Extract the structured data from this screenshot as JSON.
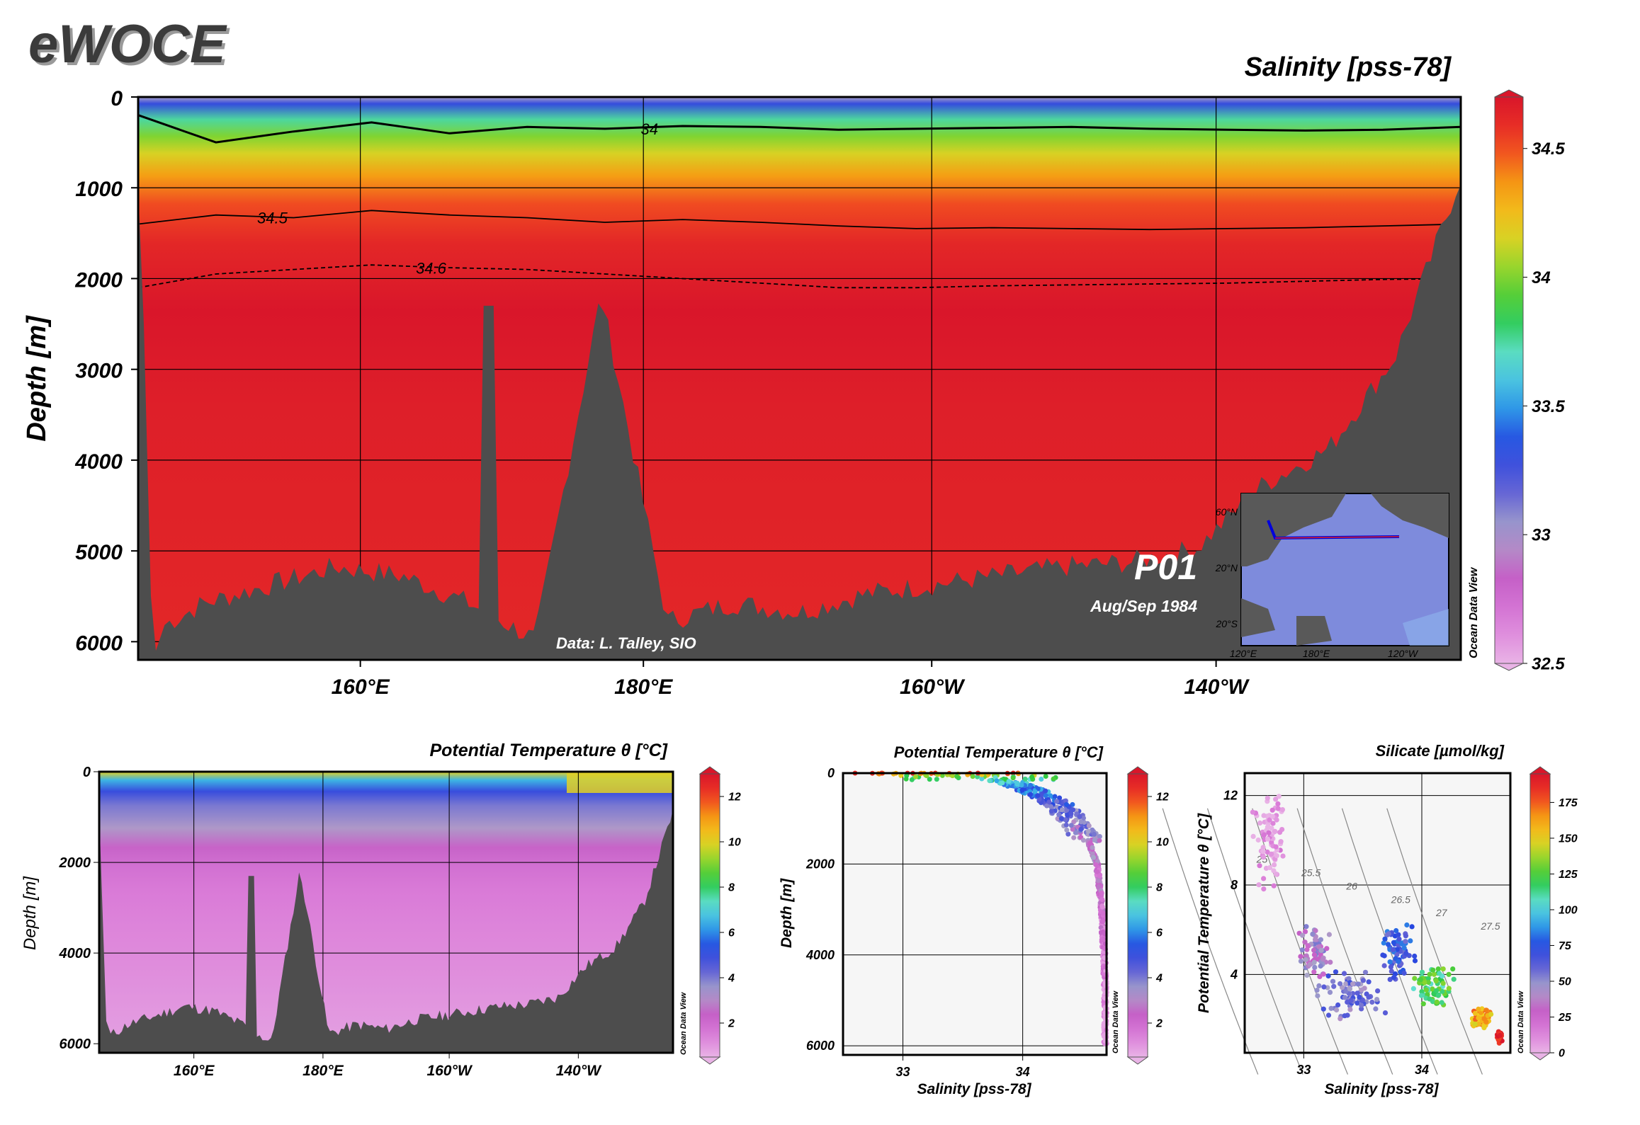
{
  "brand": "eWOCE",
  "section_id": "P01",
  "cruise_date": "Aug/Sep 1984",
  "data_credit": "Data: L. Talley, SIO",
  "watermark": "Ocean Data View",
  "colors": {
    "land": "#4d4d4d",
    "frame": "#000000",
    "palette": [
      "#e9b3e6",
      "#da7bd8",
      "#c45fc6",
      "#a9a5c8",
      "#5f5fd6",
      "#2545e0",
      "#31a6e8",
      "#63e0d8",
      "#27c842",
      "#8ed62e",
      "#f0d020",
      "#f59a13",
      "#ef3a24",
      "#d9162a",
      "#f5b58a"
    ]
  },
  "chart_data": [
    {
      "id": "main-section",
      "type": "heatmap",
      "title": "Salinity [pss-78]",
      "ylabel": "Depth [m]",
      "xlabel": "",
      "ylim": [
        6200,
        0
      ],
      "yticks": [
        0,
        1000,
        2000,
        3000,
        4000,
        5000,
        6000
      ],
      "xticks": [
        "160°E",
        "180°E",
        "160°W",
        "140°W"
      ],
      "x_lon": [
        145,
        220
      ],
      "colorbar": {
        "min": 32.5,
        "max": 34.7,
        "ticks": [
          32.5,
          33,
          33.5,
          34,
          34.5
        ]
      },
      "contours": [
        {
          "value": 34,
          "label": "34",
          "depth": [
            200,
            500,
            380,
            280,
            400,
            330,
            350,
            320,
            330,
            360,
            350,
            340,
            330,
            350,
            360,
            370,
            360,
            330
          ]
        },
        {
          "value": 34.5,
          "label": "34.5",
          "depth": [
            1400,
            1300,
            1330,
            1250,
            1300,
            1330,
            1380,
            1350,
            1380,
            1420,
            1450,
            1440,
            1450,
            1460,
            1450,
            1440,
            1420,
            1400
          ]
        },
        {
          "value": 34.6,
          "label": "34.6",
          "depth": [
            2100,
            1950,
            1900,
            1850,
            1880,
            1900,
            1950,
            2000,
            2050,
            2100,
            2100,
            2080,
            2070,
            2060,
            2050,
            2030,
            2010,
            2000
          ]
        }
      ],
      "bottom_depth": [
        6100,
        5700,
        5500,
        5300,
        5400,
        5700,
        6100,
        2300,
        5900,
        5700,
        5800,
        5600,
        5500,
        5400,
        5300,
        5250,
        5100,
        4400,
        4000,
        3000,
        1000
      ]
    },
    {
      "id": "theta-section",
      "type": "heatmap",
      "title": "Potential Temperature θ [°C]",
      "ylabel": "Depth [m]",
      "xlabel": "",
      "ylim": [
        6200,
        0
      ],
      "yticks": [
        0,
        2000,
        4000,
        6000
      ],
      "xticks": [
        "160°E",
        "180°E",
        "160°W",
        "140°W"
      ],
      "colorbar": {
        "min": 0.5,
        "max": 13,
        "ticks": [
          2,
          4,
          6,
          8,
          10,
          12
        ]
      }
    },
    {
      "id": "theta-profile",
      "type": "scatter",
      "title": "Potential Temperature θ [°C]",
      "xlabel": "Salinity [pss-78]",
      "ylabel": "Depth [m]",
      "xlim": [
        32.5,
        34.7
      ],
      "ylim": [
        6200,
        0
      ],
      "xticks": [
        33,
        34
      ],
      "yticks": [
        0,
        2000,
        4000,
        6000
      ],
      "colorbar": {
        "min": 0.5,
        "max": 13,
        "ticks": [
          2,
          4,
          6,
          8,
          10,
          12
        ]
      },
      "profile_depth": [
        0,
        200,
        400,
        700,
        1000,
        1500,
        2000,
        3000,
        4000,
        5000,
        6000
      ],
      "profile_salinity": [
        33.3,
        33.9,
        34.1,
        34.3,
        34.4,
        34.55,
        34.62,
        34.66,
        34.68,
        34.69,
        34.69
      ]
    },
    {
      "id": "ts-diagram",
      "type": "scatter",
      "title": "Silicate [µmol/kg]",
      "xlabel": "Salinity [pss-78]",
      "ylabel": "Potential Temperature θ [°C]",
      "xlim": [
        32.5,
        34.75
      ],
      "ylim": [
        0.5,
        13
      ],
      "xticks": [
        33,
        34
      ],
      "yticks": [
        4,
        8,
        12
      ],
      "colorbar": {
        "min": 0,
        "max": 195,
        "ticks": [
          0,
          25,
          50,
          75,
          100,
          125,
          150,
          175
        ]
      },
      "isopycnals": [
        "25",
        "25.5",
        "26",
        "26.5",
        "27",
        "27.5"
      ],
      "clusters": [
        {
          "s": 32.7,
          "t": 10,
          "spread_s": 0.15,
          "spread_t": 2.5,
          "si": 5,
          "n": 80
        },
        {
          "s": 33.1,
          "t": 5,
          "spread_s": 0.15,
          "spread_t": 1.2,
          "si": 40,
          "n": 70
        },
        {
          "s": 33.4,
          "t": 3,
          "spread_s": 0.3,
          "spread_t": 1.2,
          "si": 55,
          "n": 80
        },
        {
          "s": 33.8,
          "t": 5,
          "spread_s": 0.15,
          "spread_t": 1.5,
          "si": 70,
          "n": 70
        },
        {
          "s": 34.1,
          "t": 3.5,
          "spread_s": 0.2,
          "spread_t": 1,
          "si": 120,
          "n": 70
        },
        {
          "s": 34.5,
          "t": 2,
          "spread_s": 0.1,
          "spread_t": 0.6,
          "si": 160,
          "n": 50
        },
        {
          "s": 34.66,
          "t": 1.2,
          "spread_s": 0.03,
          "spread_t": 0.3,
          "si": 190,
          "n": 25
        }
      ]
    }
  ],
  "inset_map": {
    "lat_labels": [
      "60°N",
      "20°N",
      "20°S"
    ],
    "lon_labels": [
      "120°E",
      "180°E",
      "120°W"
    ]
  }
}
